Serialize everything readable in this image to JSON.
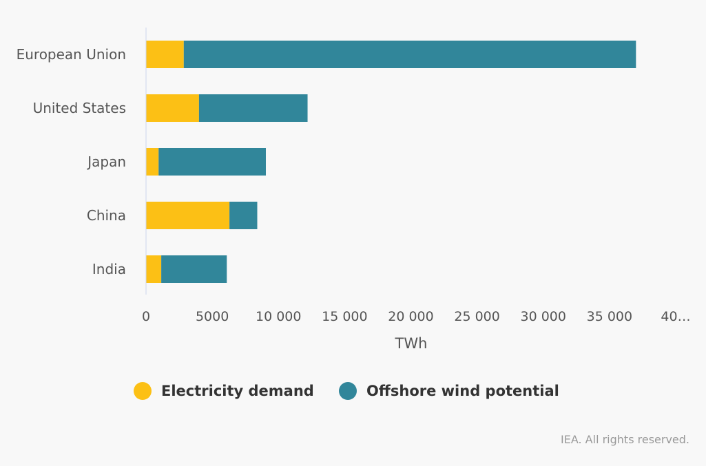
{
  "chart_data": {
    "type": "bar",
    "orientation": "horizontal",
    "stacked": true,
    "categories": [
      "European Union",
      "United States",
      "Japan",
      "China",
      "India"
    ],
    "series": [
      {
        "name": "Electricity demand",
        "color": "#fcc015",
        "values": [
          2850,
          4000,
          950,
          6300,
          1150
        ]
      },
      {
        "name": "Offshore wind potential",
        "color": "#31869a",
        "values": [
          34150,
          8200,
          8100,
          2100,
          4950
        ]
      }
    ],
    "xlabel": "TWh",
    "ylabel": "",
    "xlim": [
      0,
      40000
    ],
    "x_ticks": [
      "0",
      "5000",
      "10 000",
      "15 000",
      "20 000",
      "25 000",
      "30 000",
      "35 000",
      "40…"
    ],
    "grid": false,
    "legend_position": "bottom"
  },
  "credit": "IEA. All rights reserved."
}
